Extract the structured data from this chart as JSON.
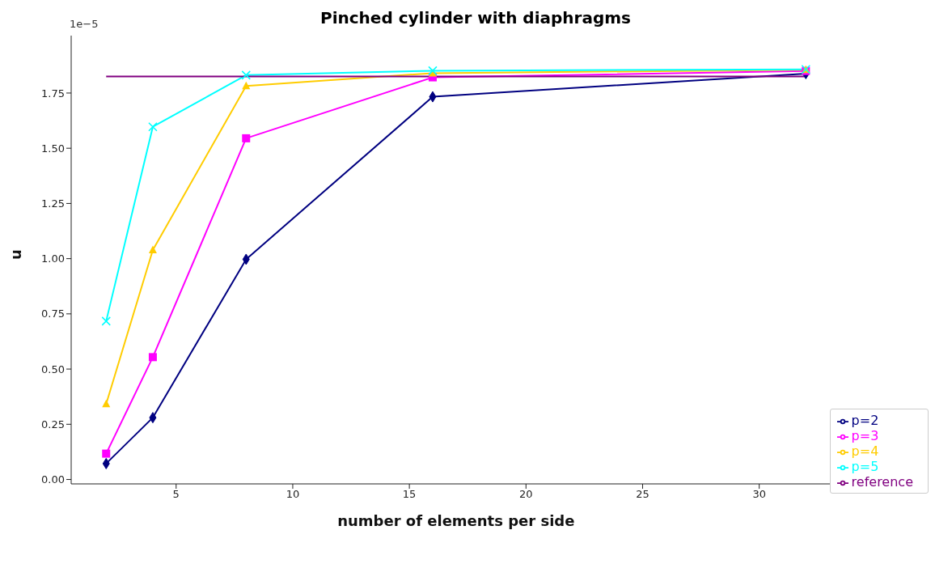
{
  "chart_data": {
    "type": "line",
    "title": "Pinched cylinder with diaphragms",
    "xlabel": "number of elements per side",
    "ylabel": "u",
    "annotations": [
      "1e−5"
    ],
    "xlim": [
      0.5,
      33.5
    ],
    "xticks": [
      5,
      10,
      15,
      20,
      25,
      30
    ],
    "ylim": [
      -0.02,
      2.01
    ],
    "yticks": [
      {
        "value": 0,
        "label": "0.00"
      },
      {
        "value": 0.25,
        "label": "0.25"
      },
      {
        "value": 0.5,
        "label": "0.50"
      },
      {
        "value": 0.75,
        "label": "0.75"
      },
      {
        "value": 1,
        "label": "1.00"
      },
      {
        "value": 1.25,
        "label": "1.25"
      },
      {
        "value": 1.5,
        "label": "1.50"
      },
      {
        "value": 1.75,
        "label": "1.75"
      }
    ],
    "grid": false,
    "legend": "bottom right",
    "line_style": "solid",
    "series": [
      {
        "name": "p=2",
        "color": "#000080",
        "marker": "diamond",
        "x": [
          2,
          4,
          8,
          16,
          32
        ],
        "values": [
          0.072,
          0.28,
          0.997,
          1.733,
          1.838
        ]
      },
      {
        "name": "p=3",
        "color": "#ff00ff",
        "marker": "square",
        "x": [
          2,
          4,
          8,
          16,
          32
        ],
        "values": [
          0.117,
          0.554,
          1.545,
          1.821,
          1.85
        ]
      },
      {
        "name": "p=4",
        "color": "#ffcc00",
        "marker": "triangle",
        "x": [
          2,
          4,
          8,
          16,
          32
        ],
        "values": [
          0.342,
          1.039,
          1.782,
          1.84,
          1.855
        ]
      },
      {
        "name": "p=5",
        "color": "#00ffff",
        "marker": "cross",
        "x": [
          2,
          4,
          8,
          16,
          32
        ],
        "values": [
          0.717,
          1.597,
          1.831,
          1.851,
          1.857
        ]
      },
      {
        "name": "reference",
        "color": "#800080",
        "marker": "none",
        "x": [
          2,
          32
        ],
        "values": [
          1.825,
          1.825
        ]
      }
    ]
  }
}
